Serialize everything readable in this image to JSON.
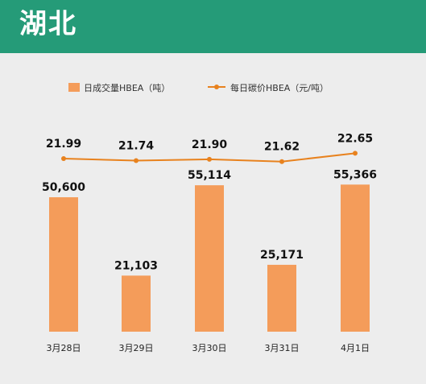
{
  "header": {
    "title": "湖北"
  },
  "colors": {
    "header_bg": "#259b78",
    "bar": "#f49c5a",
    "line": "#e8821e",
    "panel_bg": "#ededed"
  },
  "chart_data": {
    "type": "bar",
    "categories": [
      "3月28日",
      "3月29日",
      "3月30日",
      "3月31日",
      "4月1日"
    ],
    "series": [
      {
        "name": "日成交量HBEA（吨）",
        "type": "bar",
        "values": [
          50600,
          21103,
          55114,
          25171,
          55366
        ],
        "labels": [
          "50,600",
          "21,103",
          "55,114",
          "25,171",
          "55,366"
        ]
      },
      {
        "name": "每日碳价HBEA（元/吨）",
        "type": "line",
        "values": [
          21.99,
          21.74,
          21.9,
          21.62,
          22.65
        ],
        "labels": [
          "21.99",
          "21.74",
          "21.90",
          "21.62",
          "22.65"
        ]
      }
    ],
    "legend": "top",
    "grid": false
  }
}
